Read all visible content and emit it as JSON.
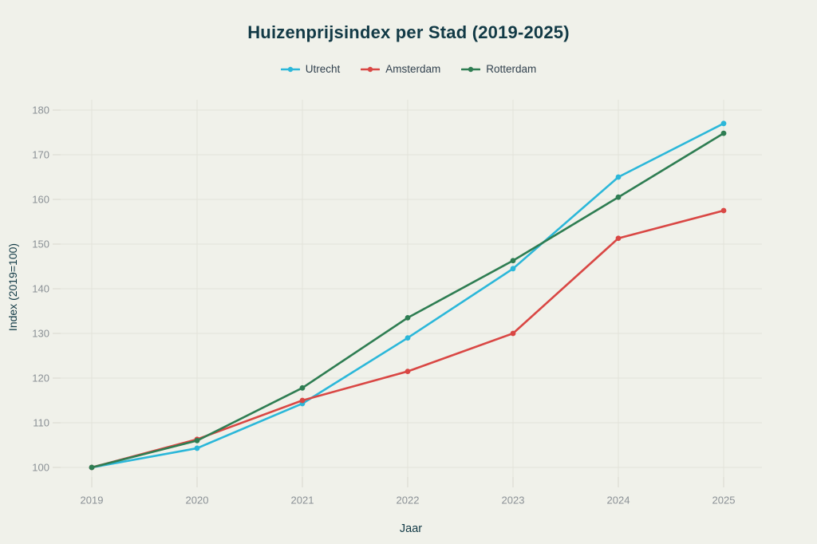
{
  "page": {
    "background": "#f0f1ea"
  },
  "chart_data": {
    "type": "line",
    "title": "Huizenprijsindex per Stad (2019-2025)",
    "xlabel": "Jaar",
    "ylabel": "Index (2019=100)",
    "x": [
      2019,
      2020,
      2021,
      2022,
      2023,
      2024,
      2025
    ],
    "series": [
      {
        "name": "Utrecht",
        "color": "#2bb7d9",
        "values": [
          100,
          104.3,
          114.3,
          129.0,
          144.5,
          165.0,
          177.0
        ]
      },
      {
        "name": "Amsterdam",
        "color": "#d94744",
        "values": [
          100,
          106.3,
          115.0,
          121.5,
          130.0,
          151.3,
          157.5
        ]
      },
      {
        "name": "Rotterdam",
        "color": "#2e7d52",
        "values": [
          100,
          106.0,
          117.8,
          133.5,
          146.3,
          160.5,
          174.8
        ]
      }
    ],
    "ylim": [
      100,
      180
    ],
    "yticks": [
      100,
      110,
      120,
      130,
      140,
      150,
      160,
      170,
      180
    ],
    "xticks": [
      "2019",
      "2020",
      "2021",
      "2022",
      "2023",
      "2024",
      "2025"
    ],
    "grid": true,
    "legend_position": "top"
  },
  "colors": {
    "title": "#123a46",
    "axis_title": "#123a46",
    "tick_label": "#8b9196",
    "gridline": "#e2e2da",
    "tick_mark": "#d8d8cf",
    "legend_text": "#31414e",
    "background": "#f0f1ea"
  }
}
